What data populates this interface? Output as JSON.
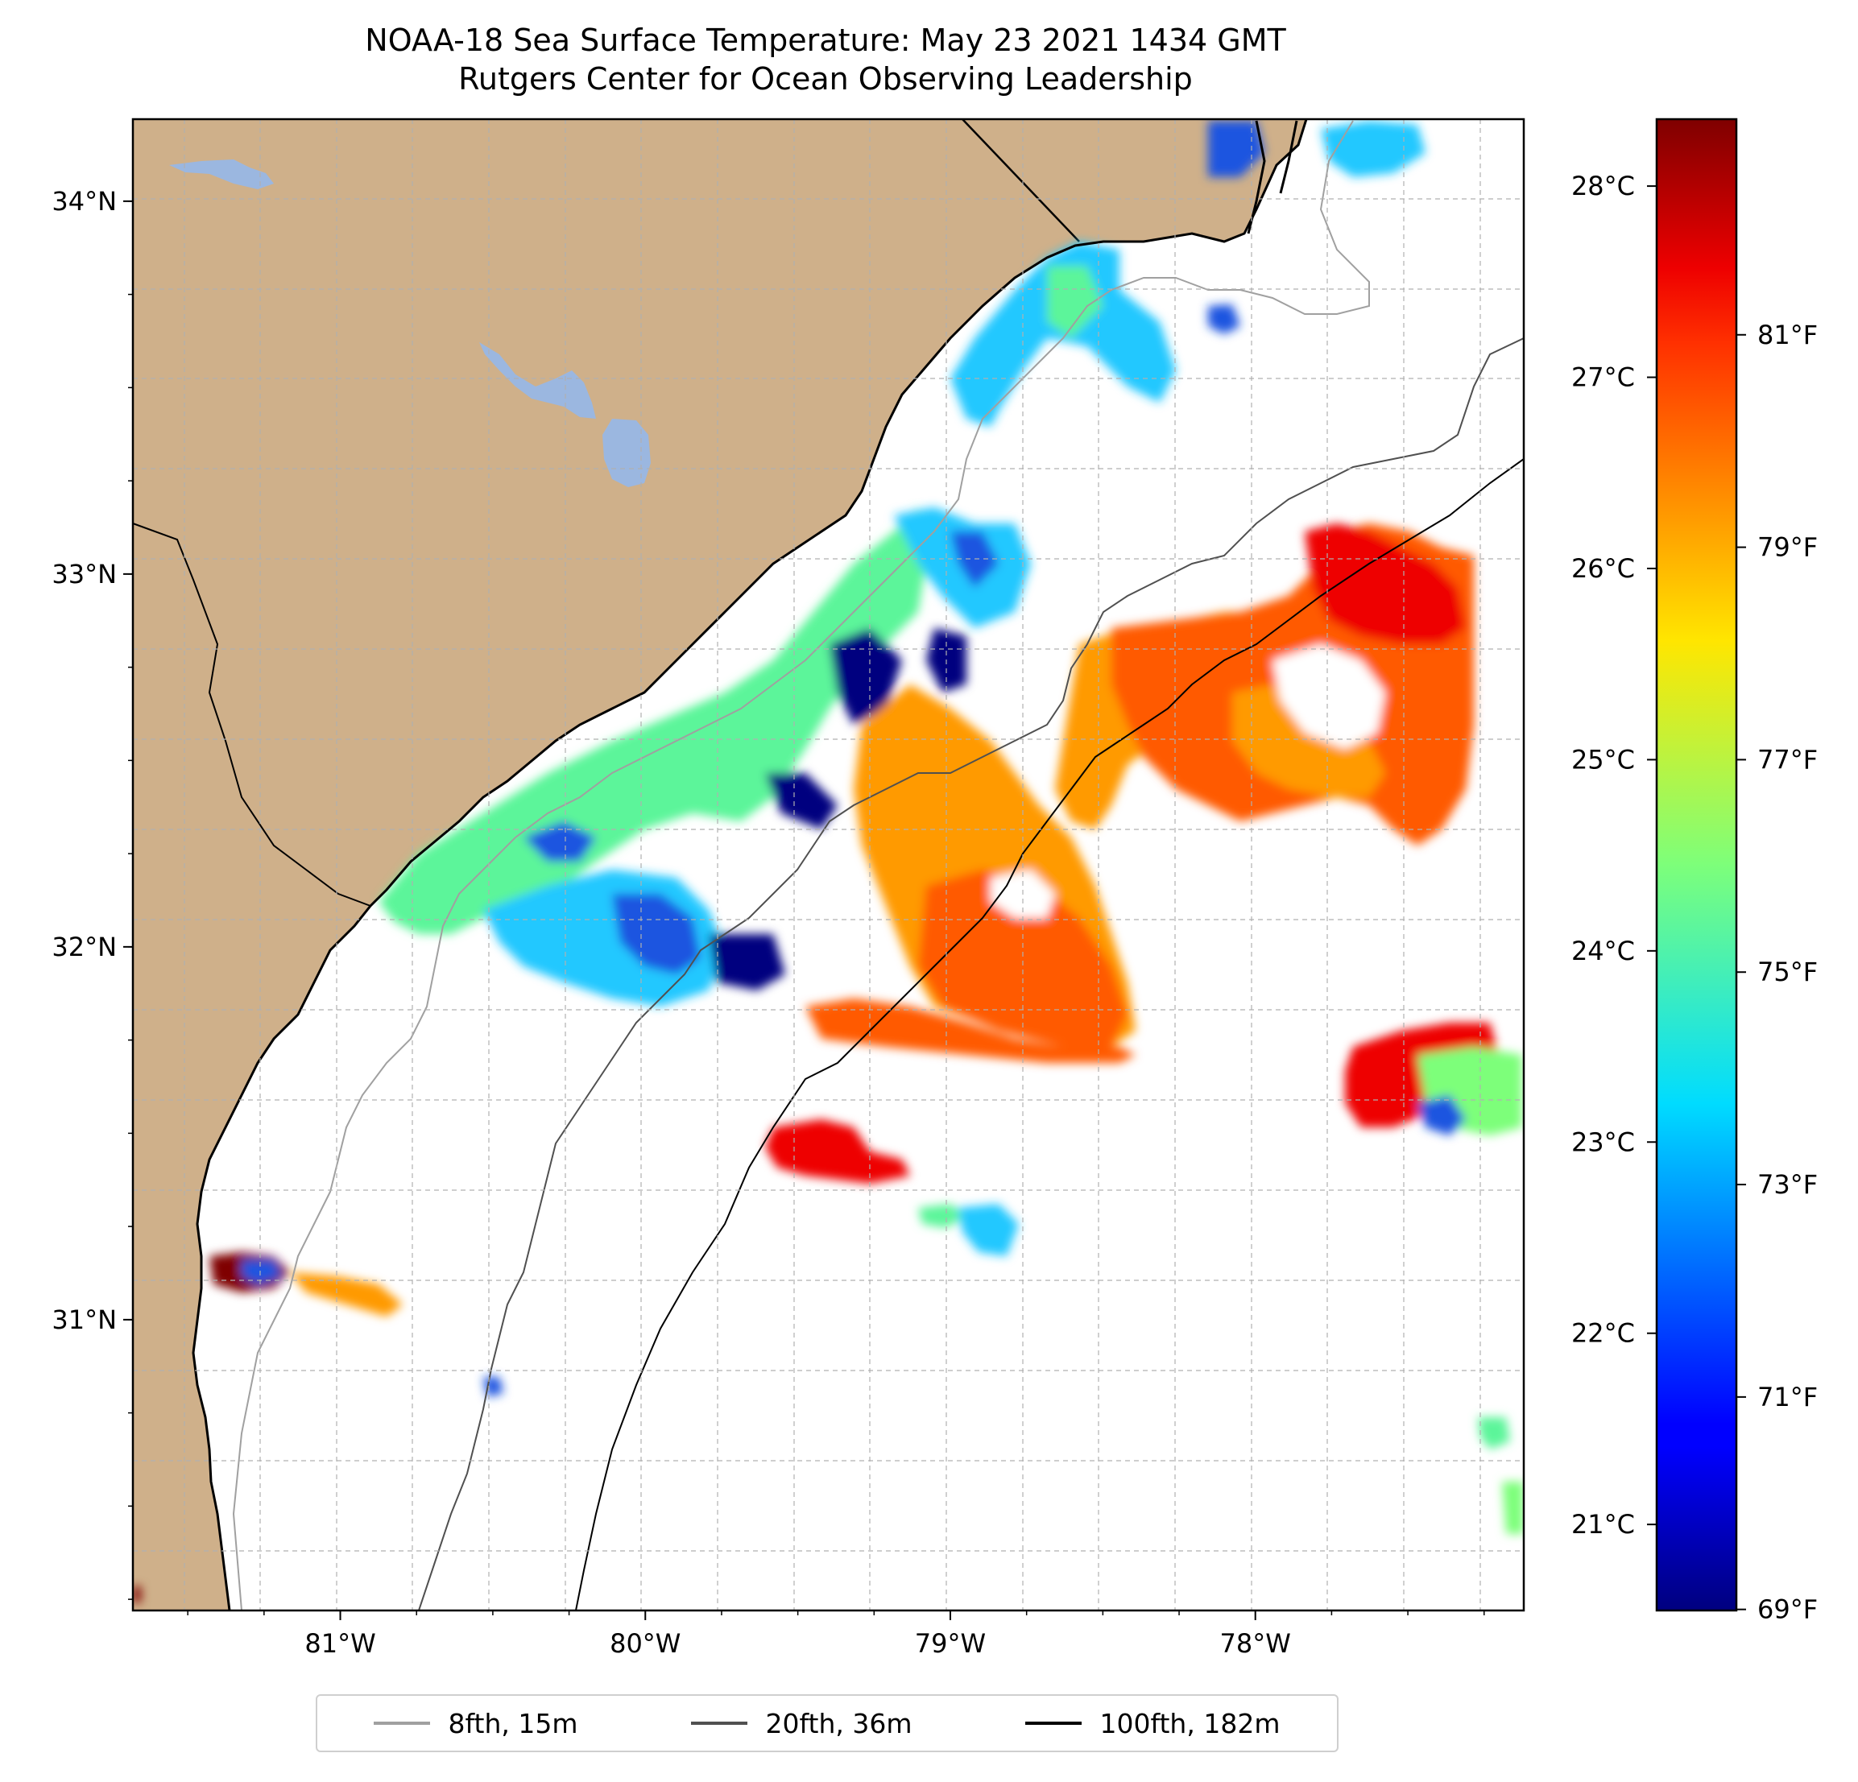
{
  "title": {
    "line1": "NOAA-18 Sea Surface Temperature: May 23 2021 1434 GMT",
    "line2": "Rutgers Center for Ocean Observing Leadership"
  },
  "map": {
    "lon_range": [
      -81.68,
      -77.12
    ],
    "lat_range": [
      30.22,
      34.22
    ],
    "lon_ticks": [
      {
        "value": -81,
        "label": "81°W"
      },
      {
        "value": -80,
        "label": "80°W"
      },
      {
        "value": -79,
        "label": "79°W"
      },
      {
        "value": -78,
        "label": "78°W"
      }
    ],
    "lat_ticks": [
      {
        "value": 34,
        "label": "34°N"
      },
      {
        "value": 33,
        "label": "33°N"
      },
      {
        "value": 32,
        "label": "32°N"
      },
      {
        "value": 31,
        "label": "31°N"
      }
    ],
    "grid": true,
    "land_color": "#cfb08a",
    "water_color": "#9bb7e0"
  },
  "colorbar": {
    "celsius_ticks": [
      {
        "value": 28,
        "label": "28°C"
      },
      {
        "value": 27,
        "label": "27°C"
      },
      {
        "value": 26,
        "label": "26°C"
      },
      {
        "value": 25,
        "label": "25°C"
      },
      {
        "value": 24,
        "label": "24°C"
      },
      {
        "value": 23,
        "label": "23°C"
      },
      {
        "value": 22,
        "label": "22°C"
      },
      {
        "value": 21,
        "label": "21°C"
      }
    ],
    "fahrenheit_ticks": [
      {
        "value": 81,
        "label": "81°F"
      },
      {
        "value": 79,
        "label": "79°F"
      },
      {
        "value": 77,
        "label": "77°F"
      },
      {
        "value": 75,
        "label": "75°F"
      },
      {
        "value": 73,
        "label": "73°F"
      },
      {
        "value": 71,
        "label": "71°F"
      },
      {
        "value": 69,
        "label": "69°F"
      }
    ],
    "celsius_range": [
      20.55,
      28.35
    ],
    "colormap": "jet"
  },
  "legend": {
    "items": [
      {
        "label": "8fth, 15m",
        "color": "#a0a0a0"
      },
      {
        "label": "20fth, 36m",
        "color": "#505050"
      },
      {
        "label": "100fth, 182m",
        "color": "#000000"
      }
    ],
    "placement": "bottom-center"
  }
}
